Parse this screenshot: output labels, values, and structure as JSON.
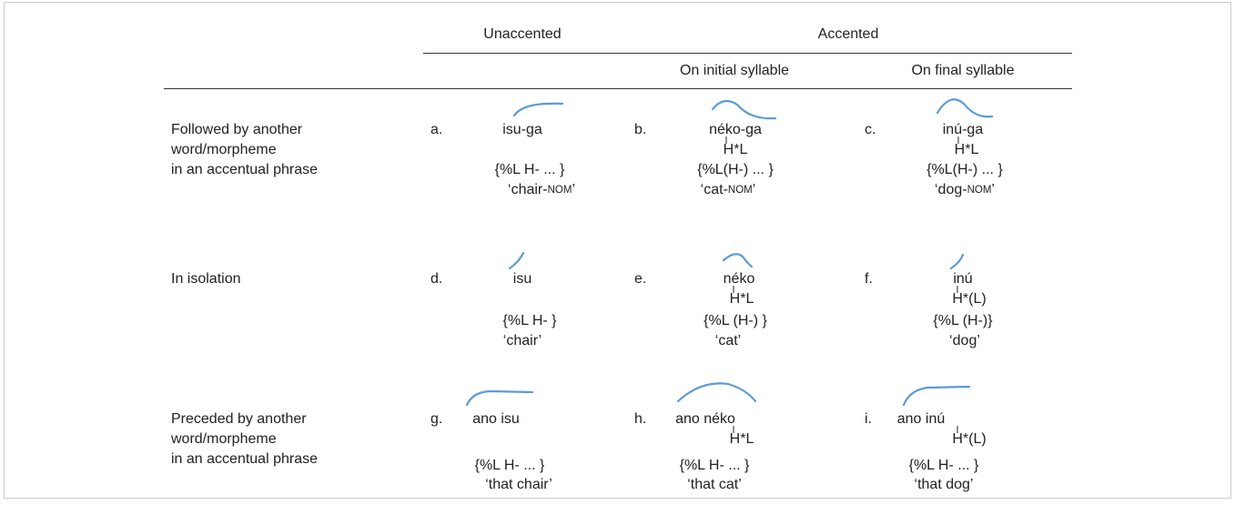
{
  "table": {
    "header": {
      "unaccented": "Unaccented",
      "accented": "Accented",
      "initial": "On initial syllable",
      "final": "On final syllable"
    },
    "rows": [
      {
        "label": [
          "Followed by another",
          "word/morpheme",
          "in an accentual phrase"
        ],
        "cells": [
          {
            "letter": "a.",
            "word": "isu-ga",
            "tone": null,
            "phrase": "{%L H- ... }",
            "gloss": [
              "‘chair-",
              "NOM",
              "’"
            ]
          },
          {
            "letter": "b.",
            "word": "néko-ga",
            "tone": "H*L",
            "phrase": "{%L(H-) ... }",
            "gloss": [
              "‘cat-",
              "NOM",
              "’"
            ]
          },
          {
            "letter": "c.",
            "word": "inú-ga",
            "tone": "H*L",
            "phrase": "{%L(H-) ... }",
            "gloss": [
              "‘dog-",
              "NOM",
              "’"
            ]
          }
        ]
      },
      {
        "label": [
          "In isolation"
        ],
        "cells": [
          {
            "letter": "d.",
            "word": "isu",
            "tone": null,
            "phrase": "{%L H- }",
            "gloss": [
              "‘chair’"
            ]
          },
          {
            "letter": "e.",
            "word": "néko",
            "tone": "H*L",
            "phrase": "{%L (H-) }",
            "gloss": [
              "‘cat’"
            ]
          },
          {
            "letter": "f.",
            "word": "inú",
            "tone": "H*(L)",
            "phrase": "{%L (H-)}",
            "gloss": [
              "‘dog’"
            ]
          }
        ]
      },
      {
        "label": [
          "Preceded by another",
          "word/morpheme",
          "in an accentual phrase"
        ],
        "cells": [
          {
            "letter": "g.",
            "word": "ano  isu",
            "tone": null,
            "phrase": "{%L H-       ... }",
            "gloss": [
              "‘that chair’"
            ]
          },
          {
            "letter": "h.",
            "word": "ano néko",
            "tone": "H*L",
            "phrase": "{%L H-       ... }",
            "gloss": [
              "‘that cat’"
            ]
          },
          {
            "letter": "i.",
            "word": "ano  inú",
            "tone": "H*(L)",
            "phrase": "{%L H-       ... }",
            "gloss": [
              "‘that dog’"
            ]
          }
        ]
      }
    ]
  }
}
